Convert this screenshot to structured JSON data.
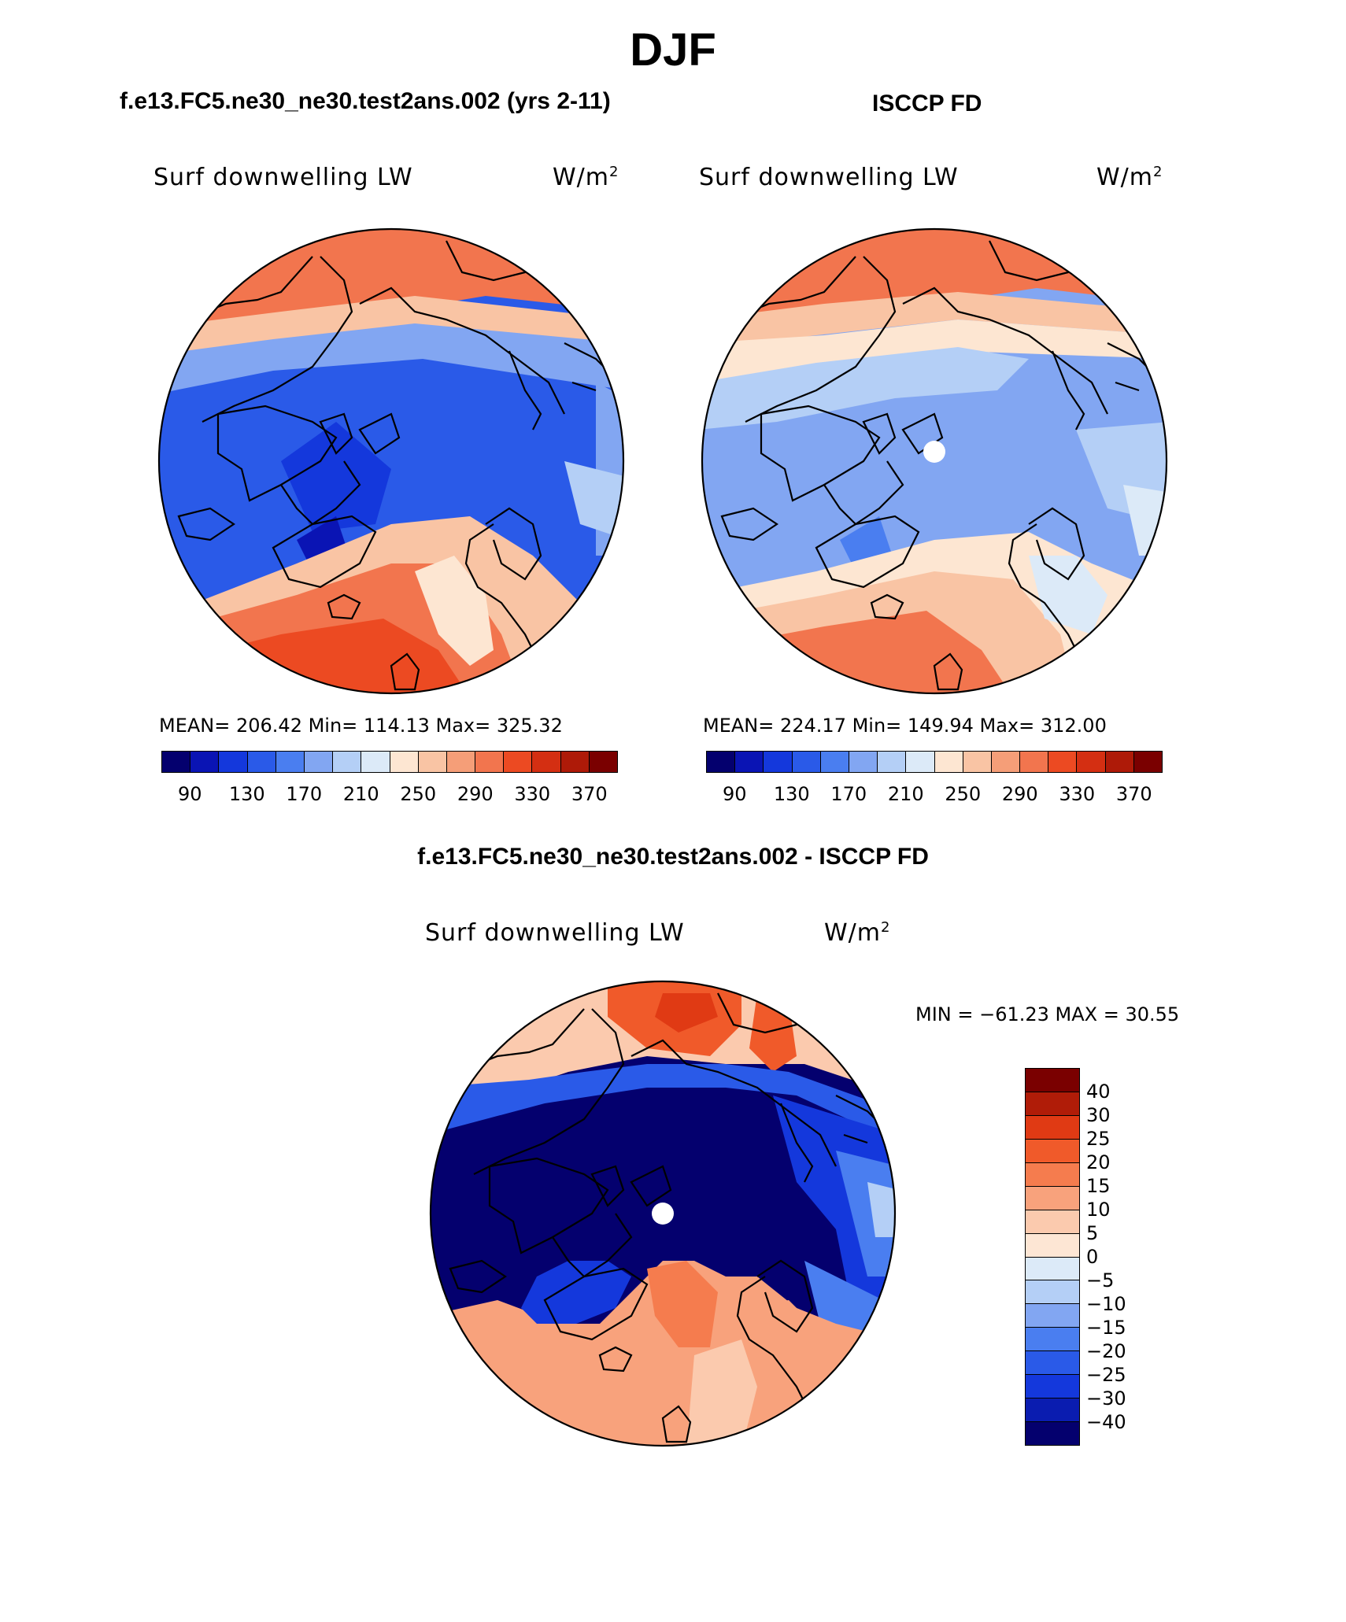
{
  "title": "DJF",
  "panels": [
    {
      "case_title": "f.e13.FC5.ne30_ne30.test2ans.002 (yrs 2-11)",
      "variable": "Surf downwelling LW",
      "units_base": "W/m",
      "units_sup": "2",
      "stats_text": "MEAN= 206.42   Min= 114.13   Max= 325.32",
      "mean": 206.42,
      "min": 114.13,
      "max": 325.32
    },
    {
      "case_title": "ISCCP FD",
      "variable": "Surf downwelling LW",
      "units_base": "W/m",
      "units_sup": "2",
      "stats_text": "MEAN= 224.17   Min= 149.94   Max= 312.00",
      "mean": 224.17,
      "min": 149.94,
      "max": 312.0
    }
  ],
  "abs_colorbar": {
    "colors": [
      "#04006e",
      "#0a14b4",
      "#1438dc",
      "#2a5ae8",
      "#4a7ef0",
      "#82a6f2",
      "#b4cff6",
      "#dceaf8",
      "#fde6d2",
      "#f9c4a4",
      "#f59e78",
      "#f2754e",
      "#ec4a22",
      "#d42f12",
      "#ae1a08",
      "#7a0000"
    ],
    "tick_labels": [
      "90",
      "130",
      "170",
      "210",
      "250",
      "290",
      "330",
      "370"
    ]
  },
  "diff_panel": {
    "title": "f.e13.FC5.ne30_ne30.test2ans.002 - ISCCP FD",
    "variable": "Surf downwelling LW",
    "units_base": "W/m",
    "units_sup": "2",
    "minmax_text": "MIN = −61.23 MAX =   30.55",
    "min": -61.23,
    "max": 30.55
  },
  "diff_colorbar": {
    "colors": [
      "#7a0000",
      "#b01c08",
      "#e03a14",
      "#f05a2a",
      "#f57c4e",
      "#f8a27c",
      "#fbcaae",
      "#fde6d4",
      "#dceaf8",
      "#b4cff6",
      "#82a6f2",
      "#4a7ef0",
      "#2a5ae8",
      "#1438dc",
      "#0a1cb0",
      "#04006e"
    ],
    "tick_labels": [
      "40",
      "30",
      "25",
      "20",
      "15",
      "10",
      "5",
      "0",
      "−5",
      "−10",
      "−15",
      "−20",
      "−25",
      "−30",
      "−40"
    ]
  }
}
